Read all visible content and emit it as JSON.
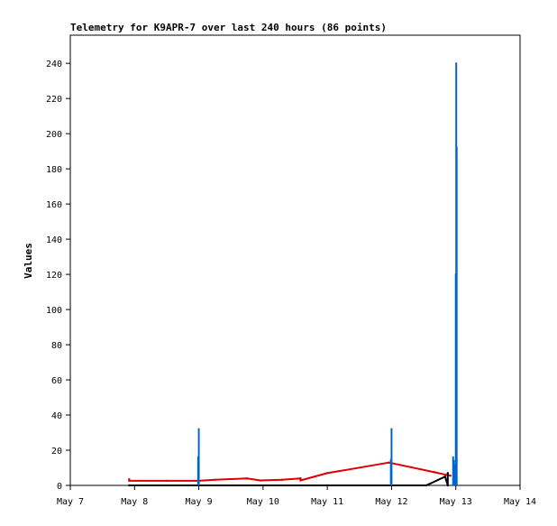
{
  "chart_data": {
    "type": "line",
    "title": "Telemetry for K9APR-7 over last 240 hours (86 points)",
    "xlabel": "",
    "ylabel": "Values",
    "x_axis": {
      "type": "date",
      "min": "2024-05-07T00:00",
      "max": "2024-05-14T00:00",
      "tick_labels": [
        "May 7",
        "May 8",
        "May 9",
        "May 10",
        "May 11",
        "May 12",
        "May 13",
        "May 14"
      ],
      "tick_values": [
        "2024-05-07T00:00",
        "2024-05-08T00:00",
        "2024-05-09T00:00",
        "2024-05-10T00:00",
        "2024-05-11T00:00",
        "2024-05-12T00:00",
        "2024-05-13T00:00",
        "2024-05-14T00:00"
      ]
    },
    "y_axis": {
      "min": 0,
      "max": 256,
      "tick_values": [
        0,
        20,
        40,
        60,
        80,
        100,
        120,
        140,
        160,
        180,
        200,
        220,
        240
      ],
      "tick_labels": [
        "0",
        "20",
        "40",
        "60",
        "80",
        "100",
        "120",
        "140",
        "160",
        "180",
        "200",
        "220",
        "240"
      ]
    },
    "grid": false,
    "legend": "none",
    "series": [
      {
        "color": "#dd0000",
        "style": "line",
        "points": [
          [
            "2024-05-07T22:00",
            3.5
          ],
          [
            "2024-05-07T22:00",
            2.6
          ],
          [
            "2024-05-08T12:00",
            2.6
          ],
          [
            "2024-05-09T00:00",
            2.6
          ],
          [
            "2024-05-09T06:00",
            3.2
          ],
          [
            "2024-05-09T18:00",
            4.0
          ],
          [
            "2024-05-09T23:00",
            2.8
          ],
          [
            "2024-05-10T07:00",
            3.2
          ],
          [
            "2024-05-10T14:00",
            4.0
          ],
          [
            "2024-05-10T14:00",
            2.8
          ],
          [
            "2024-05-11T00:00",
            7.0
          ],
          [
            "2024-05-11T23:00",
            13.0
          ],
          [
            "2024-05-12T16:00",
            7.5
          ],
          [
            "2024-05-12T22:00",
            5.5
          ]
        ]
      },
      {
        "color": "#000000",
        "style": "line",
        "points": [
          [
            "2024-05-07T22:00",
            0
          ],
          [
            "2024-05-09T00:00",
            0
          ],
          [
            "2024-05-11T00:00",
            0
          ],
          [
            "2024-05-12T13:00",
            0
          ],
          [
            "2024-05-12T20:00",
            5
          ],
          [
            "2024-05-12T21:00",
            0
          ],
          [
            "2024-05-12T21:00",
            7
          ]
        ]
      },
      {
        "color": "#0066cc",
        "style": "spikes",
        "points": [
          [
            "2024-05-08T23:45",
            16.5
          ],
          [
            "2024-05-09T00:00",
            32.5
          ],
          [
            "2024-05-11T23:45",
            15.0
          ],
          [
            "2024-05-12T00:00",
            32.5
          ],
          [
            "2024-05-12T23:00",
            16.5
          ],
          [
            "2024-05-12T23:15",
            14.5
          ],
          [
            "2024-05-12T23:30",
            12.0
          ],
          [
            "2024-05-12T23:50",
            8.5
          ],
          [
            "2024-05-13T00:00",
            120.5
          ],
          [
            "2024-05-13T00:10",
            240.5
          ],
          [
            "2024-05-13T00:20",
            192.5
          ]
        ]
      }
    ]
  }
}
